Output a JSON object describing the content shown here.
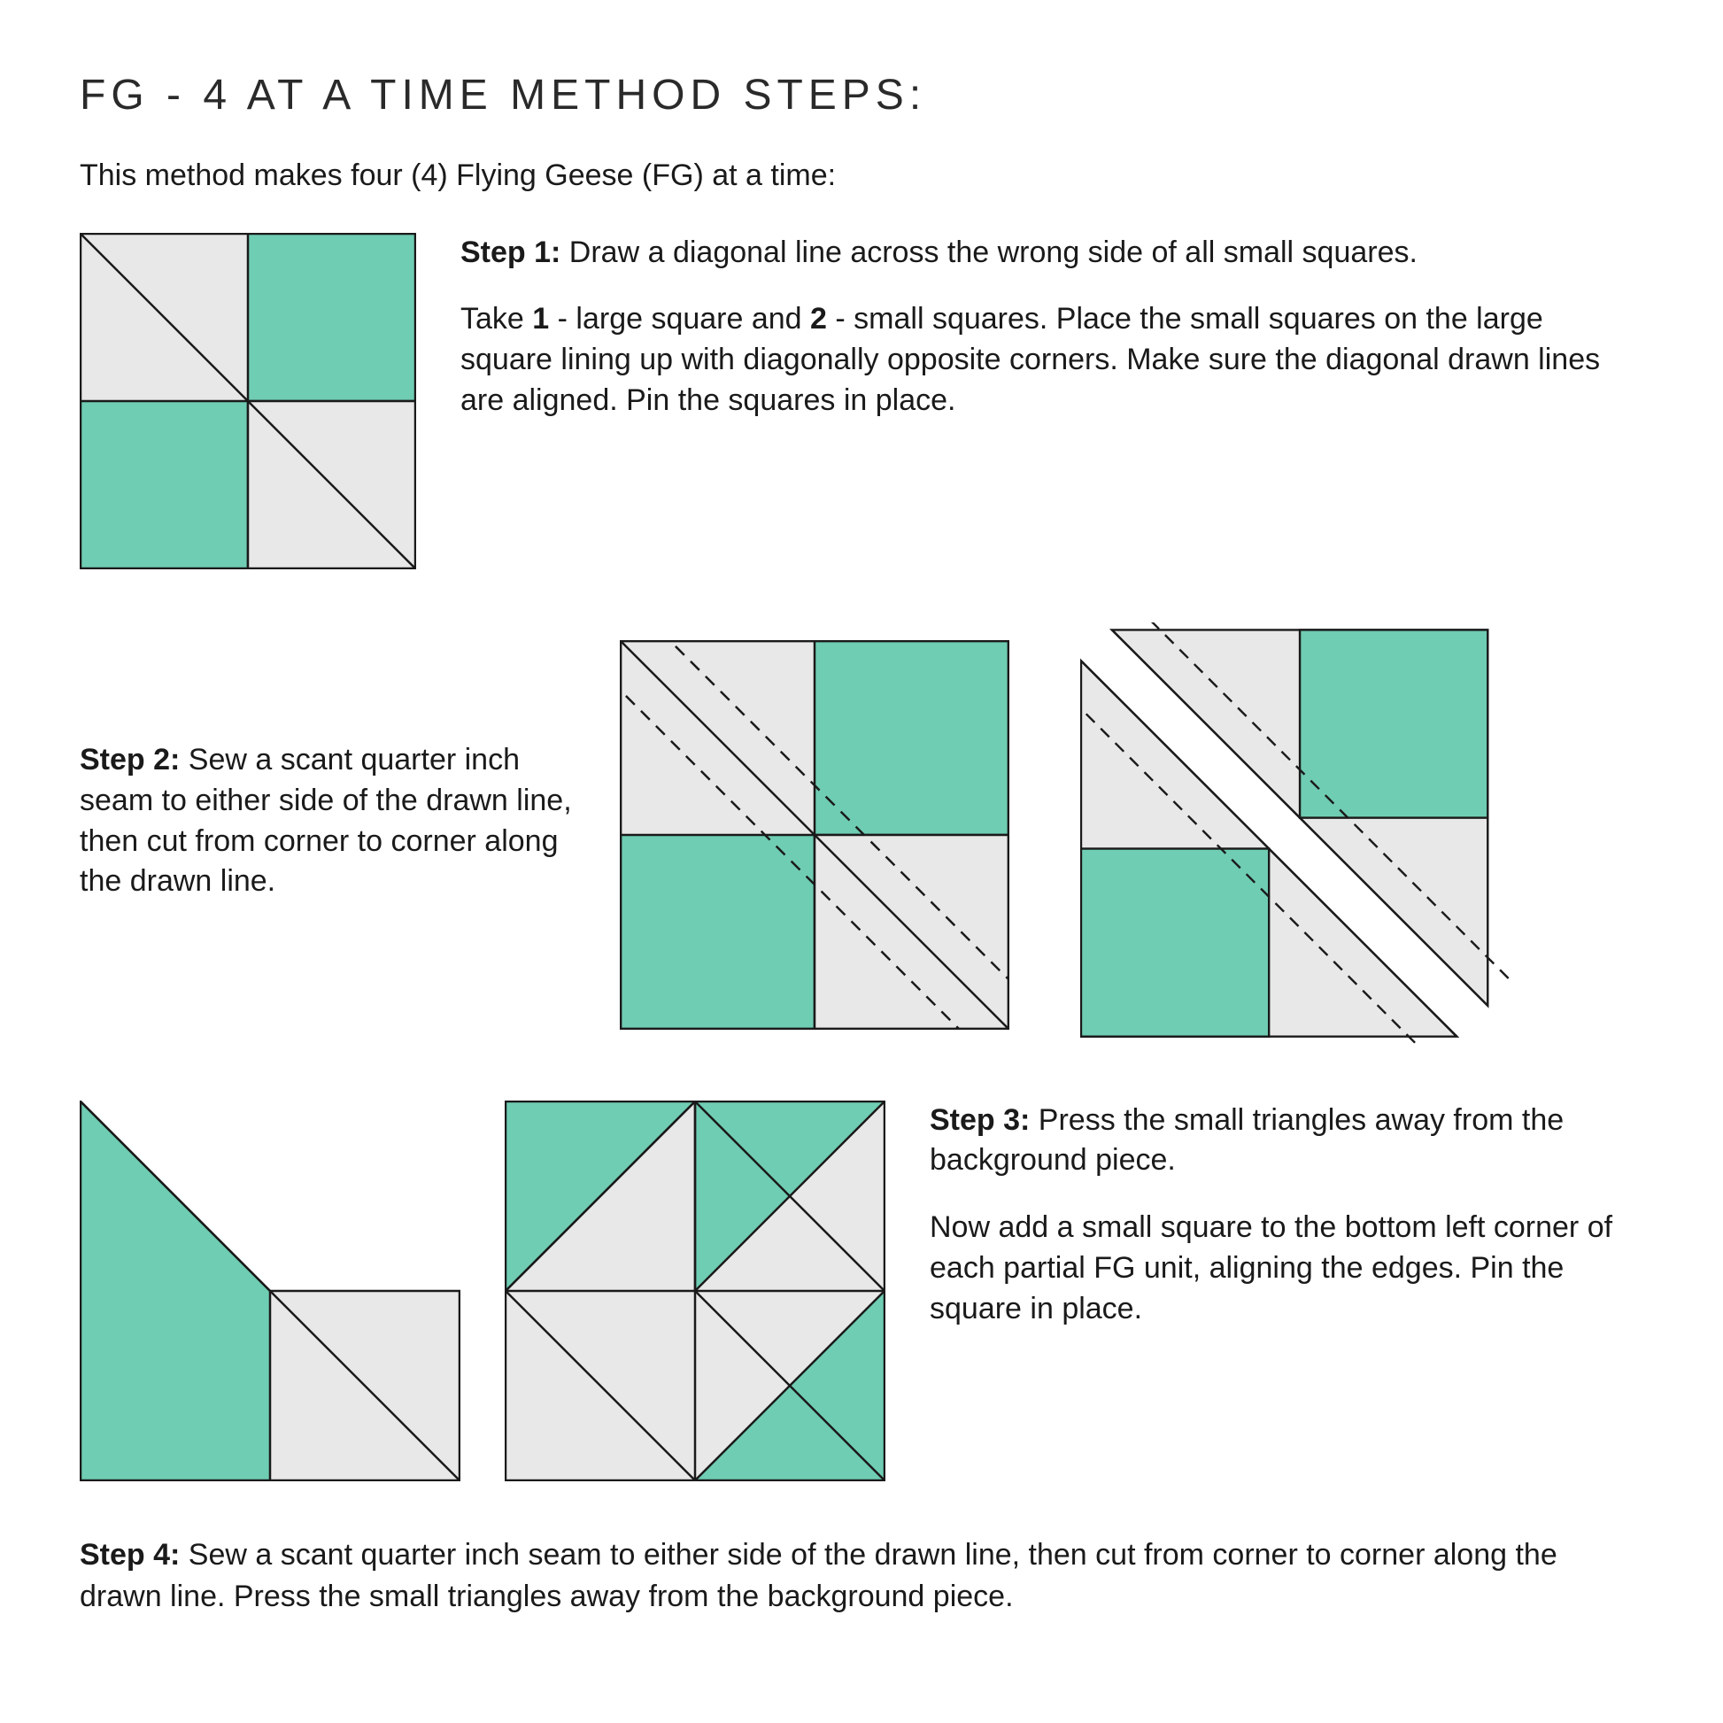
{
  "colors": {
    "bg": "#ffffff",
    "light": "#e8e8e8",
    "teal": "#6fcdb3",
    "stroke": "#1a1a1a"
  },
  "title": "FG - 4 AT A TIME METHOD STEPS:",
  "intro": "This method makes four (4) Flying Geese (FG) at a time:",
  "step1": {
    "lead": "Step 1:",
    "tail": "  Draw a diagonal line across the wrong side of all small squares.",
    "p2a": "Take ",
    "p2b": "1",
    "p2c": " -  large square and ",
    "p2d": "2",
    "p2e": " - small squares.  Place the small squares on the large square lining up with diagonally opposite corners.  Make sure the diagonal drawn lines are aligned.  Pin the squares in place."
  },
  "step2": {
    "lead": "Step 2:",
    "tail": " Sew a scant quarter inch seam to either side of the drawn line, then cut from corner to corner along the drawn line."
  },
  "step3": {
    "lead": "Step 3:",
    "tail": " Press the small triangles away from the background piece.",
    "p2": "Now add a small square to the bottom left corner of each partial FG unit, aligning the edges.  Pin the square in place."
  },
  "step4": {
    "lead": "Step 4:",
    "tail": " Sew a scant quarter inch seam to either side of the drawn line, then cut from corner to corner along the drawn line.  Press the small triangles away from the background piece."
  },
  "diagrams": {
    "stroke_w": 2.5,
    "dash": "14 10",
    "d1_size": 380,
    "d2_size": 440,
    "d2_gap": 80,
    "d3a_size": 430,
    "d3b_size": 430
  }
}
